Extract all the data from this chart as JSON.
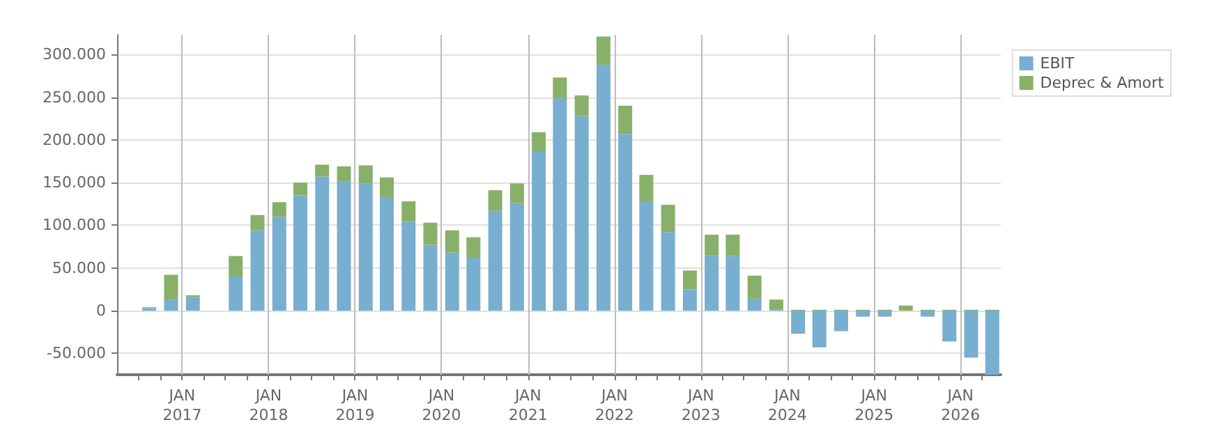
{
  "chart_data": {
    "type": "bar",
    "stacked": true,
    "legend": "top right",
    "grid": true,
    "x": [
      "2016-08-15",
      "2016-11-15",
      "2017-02-15",
      "2017-05-15",
      "2017-08-15",
      "2017-11-15",
      "2018-02-15",
      "2018-05-15",
      "2018-08-15",
      "2018-11-15",
      "2019-02-15",
      "2019-05-15",
      "2019-08-15",
      "2019-11-15",
      "2020-02-15",
      "2020-05-15",
      "2020-08-15",
      "2020-11-15",
      "2021-02-15",
      "2021-05-15",
      "2021-08-15",
      "2021-11-15",
      "2022-02-15",
      "2022-05-15",
      "2022-08-15",
      "2022-11-15",
      "2023-02-15",
      "2023-05-15",
      "2023-08-15",
      "2023-11-15",
      "2024-02-15",
      "2024-05-15",
      "2024-08-15",
      "2024-11-15",
      "2025-02-15",
      "2025-05-15",
      "2025-08-15",
      "2025-11-15",
      "2026-02-15",
      "2026-05-15"
    ],
    "series": [
      {
        "name": "EBIT",
        "color": "#78aed0",
        "values": [
          3000,
          13000,
          16000,
          null,
          40000,
          94000,
          110000,
          135000,
          157000,
          151000,
          149000,
          133000,
          104000,
          77000,
          68000,
          62000,
          117000,
          126000,
          186000,
          249000,
          228000,
          288000,
          207000,
          128000,
          92000,
          25000,
          65000,
          64000,
          14000,
          1000,
          -27000,
          -43000,
          -24000,
          -7000,
          -7000,
          0,
          -7000,
          -36000,
          -55000,
          -75000
        ]
      },
      {
        "name": "Deprec & Amort",
        "color": "#88b068",
        "values": [
          1000,
          29000,
          2000,
          null,
          24000,
          18000,
          17000,
          15000,
          14000,
          18000,
          21000,
          23000,
          24000,
          26000,
          26000,
          24000,
          24000,
          23000,
          23000,
          24000,
          24000,
          33000,
          33000,
          31000,
          32000,
          22000,
          24000,
          25000,
          27000,
          12000,
          1000,
          1000,
          1000,
          1000,
          1000,
          6000,
          1000,
          1000,
          1000,
          1000
        ]
      }
    ],
    "xlim": [
      "2016-04-01",
      "2026-06-20"
    ],
    "xticks": [
      {
        "value": "2016-07-01",
        "label": null
      },
      {
        "value": "2016-10-01",
        "label": null
      },
      {
        "value": "2017-01-01",
        "label": "JAN\n2017"
      },
      {
        "value": "2017-04-01",
        "label": null
      },
      {
        "value": "2017-07-01",
        "label": null
      },
      {
        "value": "2017-10-01",
        "label": null
      },
      {
        "value": "2018-01-01",
        "label": "JAN\n2018"
      },
      {
        "value": "2018-04-01",
        "label": null
      },
      {
        "value": "2018-07-01",
        "label": null
      },
      {
        "value": "2018-10-01",
        "label": null
      },
      {
        "value": "2019-01-01",
        "label": "JAN\n2019"
      },
      {
        "value": "2019-04-01",
        "label": null
      },
      {
        "value": "2019-07-01",
        "label": null
      },
      {
        "value": "2019-10-01",
        "label": null
      },
      {
        "value": "2020-01-01",
        "label": "JAN\n2020"
      },
      {
        "value": "2020-04-01",
        "label": null
      },
      {
        "value": "2020-07-01",
        "label": null
      },
      {
        "value": "2020-10-01",
        "label": null
      },
      {
        "value": "2021-01-01",
        "label": "JAN\n2021"
      },
      {
        "value": "2021-04-01",
        "label": null
      },
      {
        "value": "2021-07-01",
        "label": null
      },
      {
        "value": "2021-10-01",
        "label": null
      },
      {
        "value": "2022-01-01",
        "label": "JAN\n2022"
      },
      {
        "value": "2022-04-01",
        "label": null
      },
      {
        "value": "2022-07-01",
        "label": null
      },
      {
        "value": "2022-10-01",
        "label": null
      },
      {
        "value": "2023-01-01",
        "label": "JAN\n2023"
      },
      {
        "value": "2023-04-01",
        "label": null
      },
      {
        "value": "2023-07-01",
        "label": null
      },
      {
        "value": "2023-10-01",
        "label": null
      },
      {
        "value": "2024-01-01",
        "label": "JAN\n2024"
      },
      {
        "value": "2024-04-01",
        "label": null
      },
      {
        "value": "2024-07-01",
        "label": null
      },
      {
        "value": "2024-10-01",
        "label": null
      },
      {
        "value": "2025-01-01",
        "label": "JAN\n2025"
      },
      {
        "value": "2025-04-01",
        "label": null
      },
      {
        "value": "2025-07-01",
        "label": null
      },
      {
        "value": "2025-10-01",
        "label": null
      },
      {
        "value": "2026-01-01",
        "label": "JAN\n2026"
      },
      {
        "value": "2026-04-01",
        "label": null
      }
    ],
    "ylim": [
      -75000,
      323000
    ],
    "yticks": [
      {
        "value": -50000,
        "label": "-50.000"
      },
      {
        "value": 0,
        "label": "0"
      },
      {
        "value": 50000,
        "label": "50.000"
      },
      {
        "value": 100000,
        "label": "100.000"
      },
      {
        "value": 150000,
        "label": "150.000"
      },
      {
        "value": 200000,
        "label": "200.000"
      },
      {
        "value": 250000,
        "label": "250.000"
      },
      {
        "value": 300000,
        "label": "300.000"
      }
    ]
  }
}
